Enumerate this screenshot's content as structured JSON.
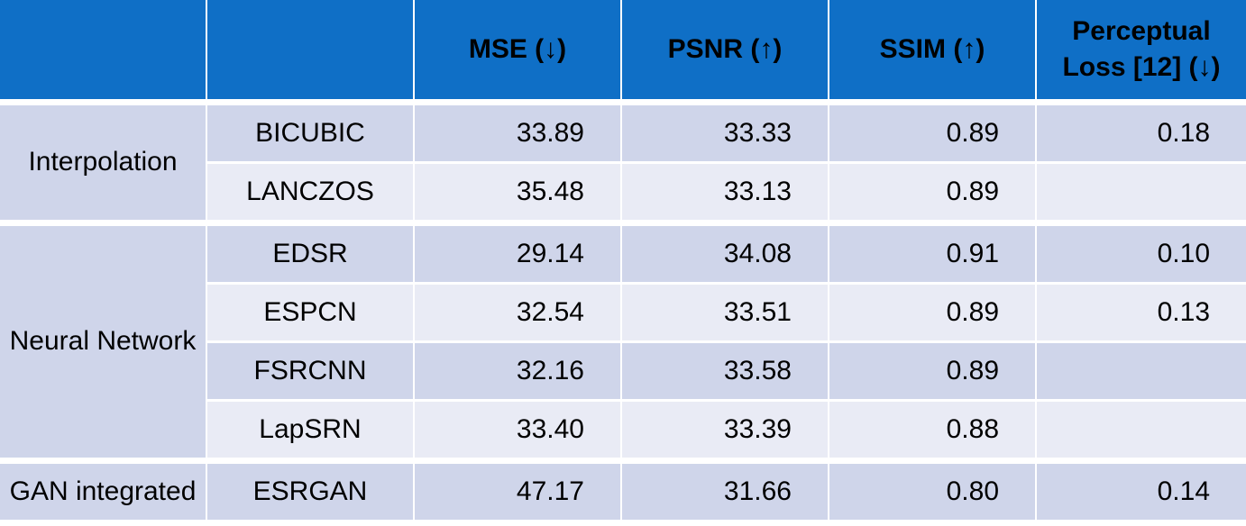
{
  "table": {
    "headers": [
      "",
      "",
      "MSE (↓)",
      "PSNR (↑)",
      "SSIM (↑)",
      "Perceptual Loss [12] (↓)"
    ],
    "groups": [
      {
        "label": "Interpolation",
        "rows": [
          {
            "method": "BICUBIC",
            "values": [
              "33.89",
              "33.33",
              "0.89",
              "0.18"
            ]
          },
          {
            "method": "LANCZOS",
            "values": [
              "35.48",
              "33.13",
              "0.89",
              null
            ]
          }
        ]
      },
      {
        "label": "Neural Network",
        "rows": [
          {
            "method": "EDSR",
            "values": [
              "29.14",
              "34.08",
              "0.91",
              "0.10"
            ]
          },
          {
            "method": "ESPCN",
            "values": [
              "32.54",
              "33.51",
              "0.89",
              "0.13"
            ]
          },
          {
            "method": "FSRCNN",
            "values": [
              "32.16",
              "33.58",
              "0.89",
              null
            ]
          },
          {
            "method": "LapSRN",
            "values": [
              "33.40",
              "33.39",
              "0.88",
              null
            ]
          }
        ]
      },
      {
        "label": "GAN integrated",
        "rows": [
          {
            "method": "ESRGAN",
            "values": [
              "47.17",
              "31.66",
              "0.80",
              "0.14"
            ]
          }
        ]
      }
    ]
  }
}
